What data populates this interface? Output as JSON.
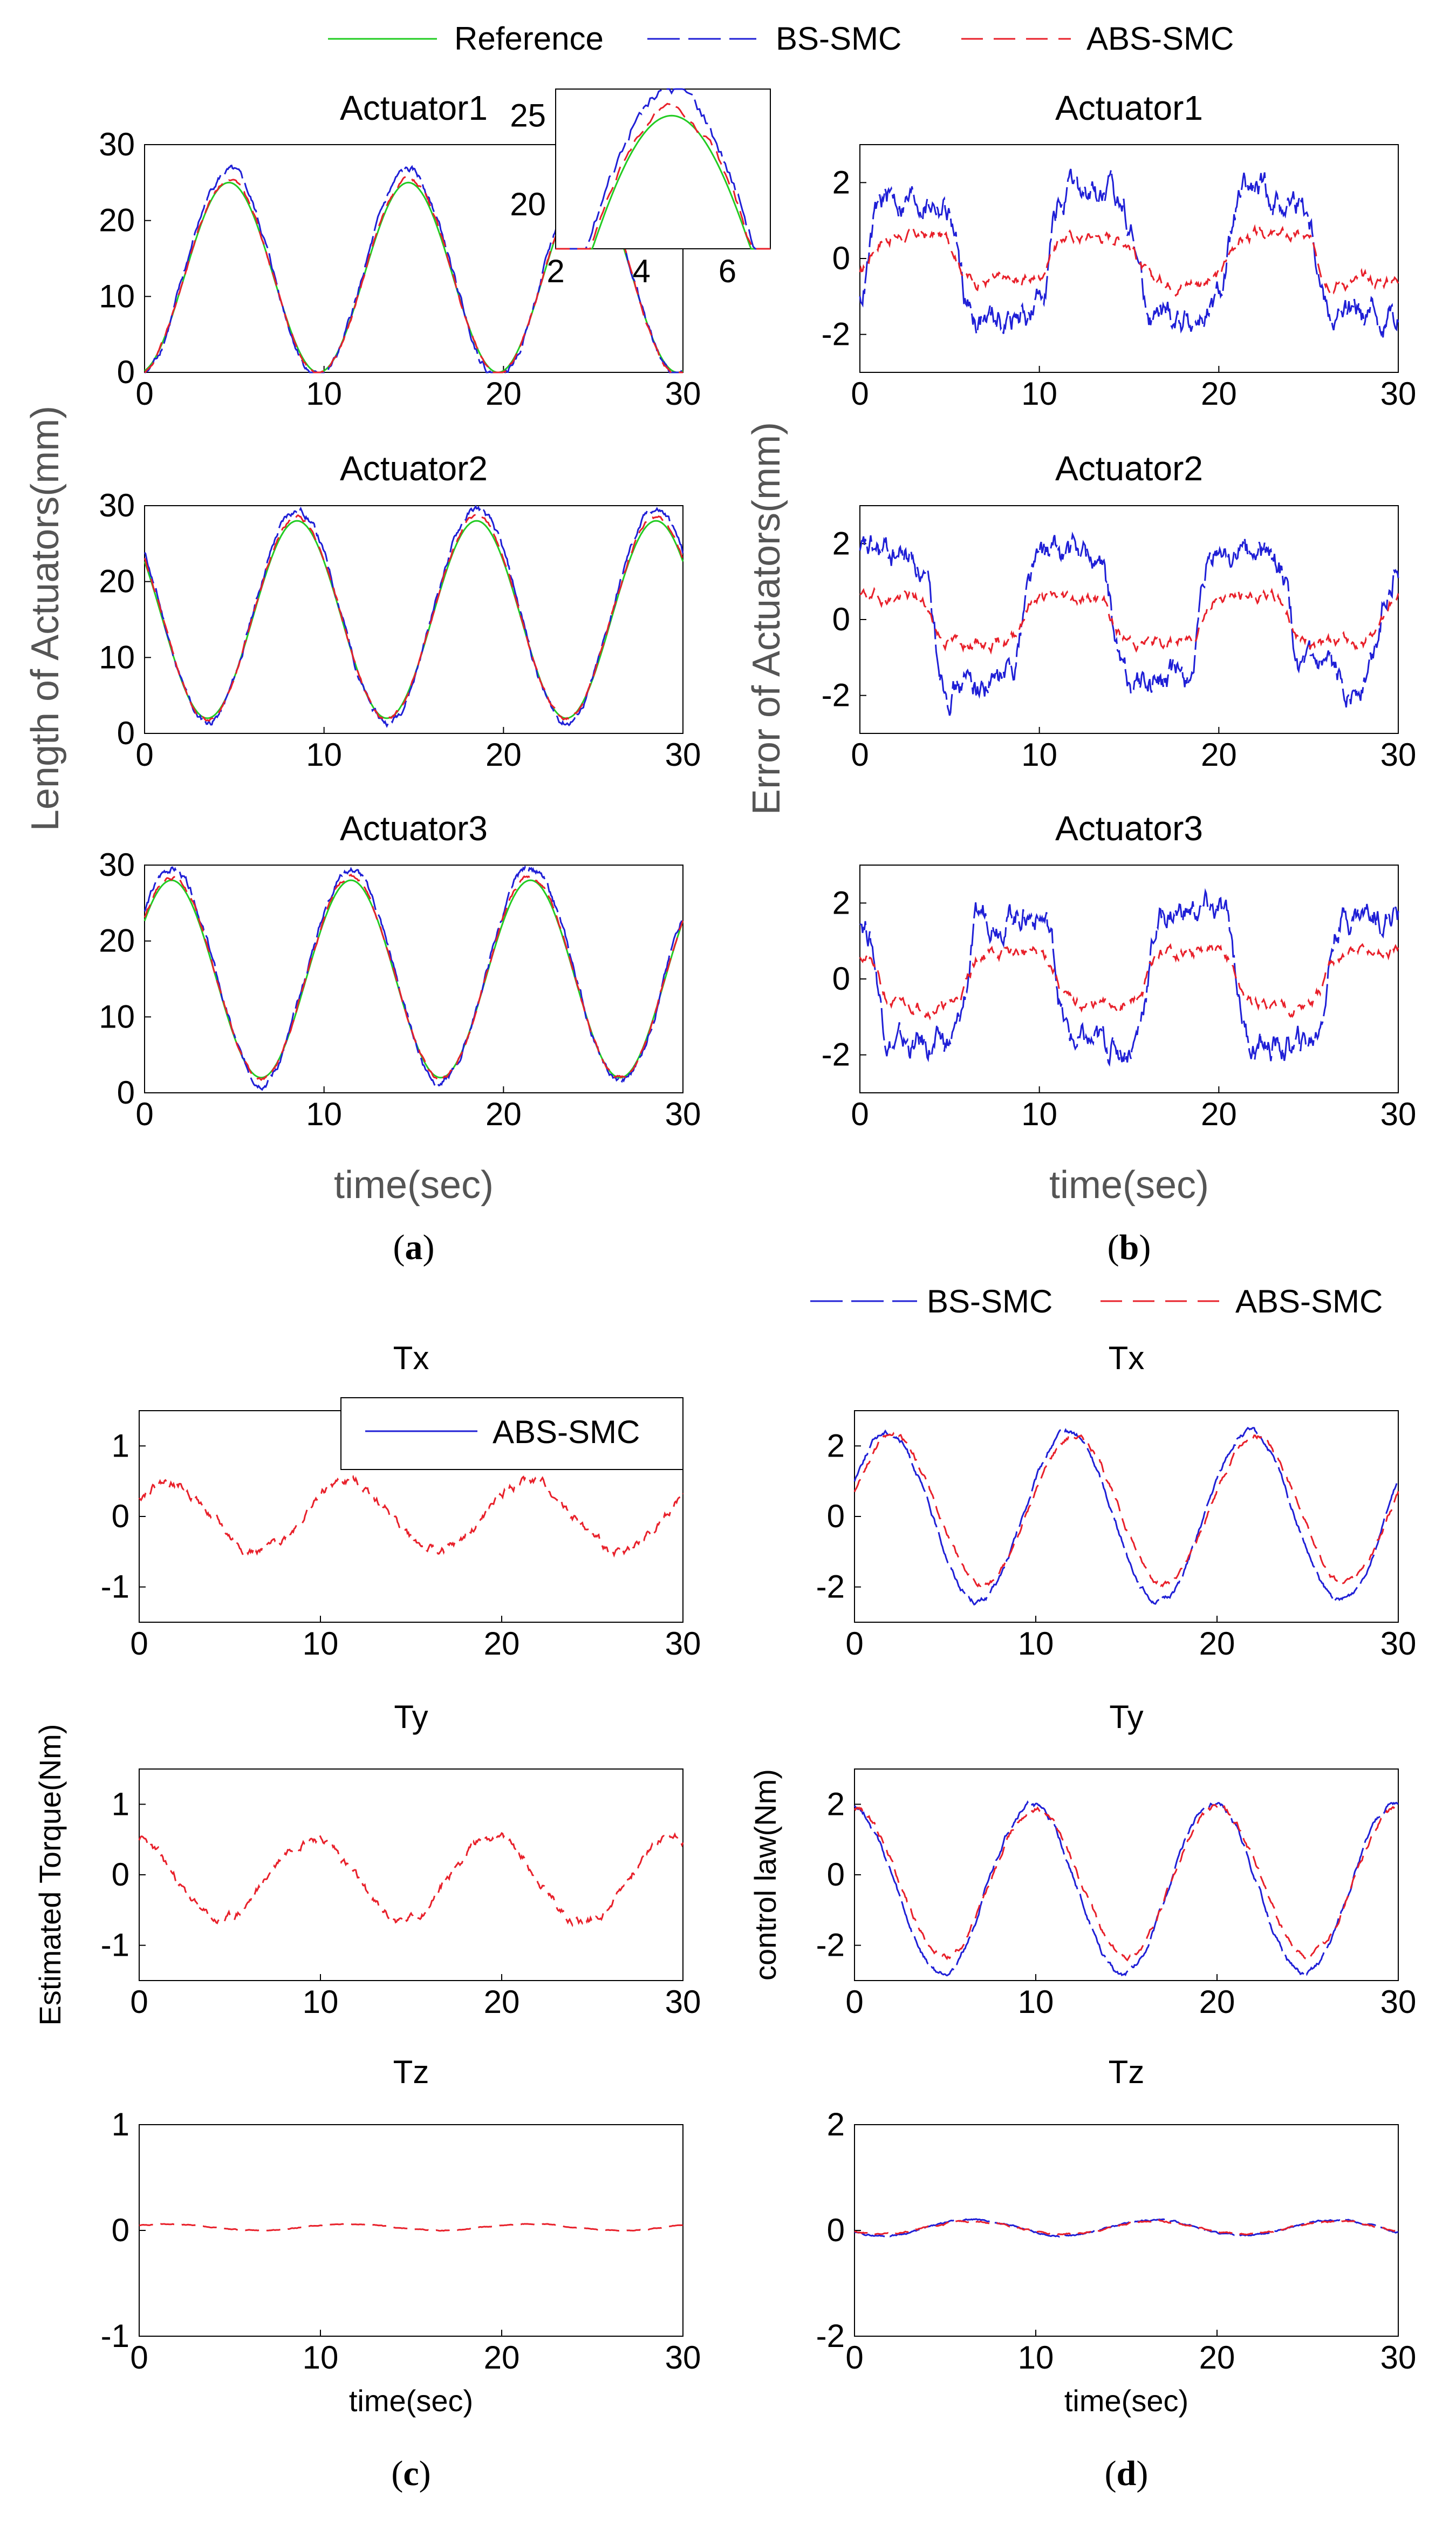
{
  "colors": {
    "reference": "#22cc22",
    "bs": "#1f1fd6",
    "abs": "#e8202a"
  },
  "legend_top": [
    "Reference",
    "BS-SMC",
    "ABS-SMC"
  ],
  "legend_d": [
    "BS-SMC",
    "ABS-SMC"
  ],
  "legend_c": "ABS-SMC",
  "panel_labels": {
    "a": "a",
    "b": "b",
    "c": "c",
    "d": "d"
  },
  "axis_labels": {
    "a_y": "Length of Actuators(mm)",
    "b_y": "Error of Actuators(mm)",
    "c_y": "Estimated Torque(Nm)",
    "d_y": "control law(Nm)",
    "ab_x": "time(sec)",
    "cd_x": "time(sec)"
  },
  "chart_data": [
    {
      "id": "a1",
      "type": "line",
      "title": "Actuator1",
      "xlim": [
        0,
        30
      ],
      "ylim": [
        0,
        30
      ],
      "xticks": [
        0,
        10,
        20,
        30
      ],
      "yticks": [
        0,
        10,
        20,
        30
      ],
      "series": [
        {
          "name": "Reference",
          "ref": true,
          "mean": 12.5,
          "amp": 12.5,
          "phase": 4.7
        },
        {
          "name": "BS-SMC",
          "mean": 13.0,
          "amp": 13.5,
          "phase": 4.7,
          "noise": 0.6
        },
        {
          "name": "ABS-SMC",
          "mean": 12.6,
          "amp": 12.8,
          "phase": 4.7,
          "noise": 0.3
        }
      ]
    },
    {
      "id": "a2",
      "type": "line",
      "title": "Actuator2",
      "xlim": [
        0,
        30
      ],
      "ylim": [
        0,
        30
      ],
      "xticks": [
        0,
        10,
        20,
        30
      ],
      "yticks": [
        0,
        10,
        20,
        30
      ],
      "series": [
        {
          "name": "Reference",
          "ref": true,
          "mean": 15.0,
          "amp": 13.0,
          "phase": 8.5
        },
        {
          "name": "BS-SMC",
          "mean": 15.5,
          "amp": 14.0,
          "phase": 8.5,
          "noise": 0.6
        },
        {
          "name": "ABS-SMC",
          "mean": 15.2,
          "amp": 13.3,
          "phase": 8.5,
          "noise": 0.3
        }
      ]
    },
    {
      "id": "a3",
      "type": "line",
      "title": "Actuator3",
      "xlim": [
        0,
        30
      ],
      "ylim": [
        0,
        30
      ],
      "xticks": [
        0,
        10,
        20,
        30
      ],
      "yticks": [
        0,
        10,
        20,
        30
      ],
      "series": [
        {
          "name": "Reference",
          "ref": true,
          "mean": 15.0,
          "amp": 13.0,
          "phase": 1.5
        },
        {
          "name": "BS-SMC",
          "mean": 15.5,
          "amp": 14.0,
          "phase": 1.5,
          "noise": 0.6
        },
        {
          "name": "ABS-SMC",
          "mean": 15.2,
          "amp": 13.3,
          "phase": 1.5,
          "noise": 0.3
        }
      ]
    },
    {
      "id": "b1",
      "type": "line",
      "title": "Actuator1",
      "xlim": [
        0,
        30
      ],
      "ylim": [
        -3,
        3
      ],
      "xticks": [
        0,
        10,
        20,
        30
      ],
      "yticks": [
        -2,
        0,
        2
      ],
      "series": [
        {
          "name": "BS-SMC",
          "square": true,
          "level": 1.6,
          "period": 10,
          "offset": 0.5,
          "noise": 0.5
        },
        {
          "name": "ABS-SMC",
          "square": true,
          "level": 0.6,
          "period": 10,
          "offset": 0.5,
          "noise": 0.2
        }
      ]
    },
    {
      "id": "b2",
      "type": "line",
      "title": "Actuator2",
      "xlim": [
        0,
        30
      ],
      "ylim": [
        -3,
        3
      ],
      "xticks": [
        0,
        10,
        20,
        30
      ],
      "yticks": [
        -2,
        0,
        2
      ],
      "series": [
        {
          "name": "BS-SMC",
          "square": true,
          "level": 1.7,
          "period": 10,
          "offset": -1.0,
          "noise": 0.5
        },
        {
          "name": "ABS-SMC",
          "square": true,
          "level": 0.6,
          "period": 10,
          "offset": -1.0,
          "noise": 0.2
        }
      ]
    },
    {
      "id": "b3",
      "type": "line",
      "title": "Actuator3",
      "xlim": [
        0,
        30
      ],
      "ylim": [
        -3,
        3
      ],
      "xticks": [
        0,
        10,
        20,
        30
      ],
      "yticks": [
        -2,
        0,
        2
      ],
      "series": [
        {
          "name": "BS-SMC",
          "square": true,
          "level": -1.8,
          "period": 10,
          "offset": 1.0,
          "noise": 0.5
        },
        {
          "name": "ABS-SMC",
          "square": true,
          "level": -0.7,
          "period": 10,
          "offset": 1.0,
          "noise": 0.2
        }
      ]
    },
    {
      "id": "c1",
      "type": "line",
      "title": "Tx",
      "xlim": [
        0,
        30
      ],
      "ylim": [
        -1.5,
        1.5
      ],
      "xticks": [
        0,
        10,
        20,
        30
      ],
      "yticks": [
        -1,
        0,
        1
      ],
      "series": [
        {
          "name": "ABS-SMC",
          "mean": 0.0,
          "amp": 0.5,
          "phase": 1.5,
          "noise": 0.08
        }
      ]
    },
    {
      "id": "c2",
      "type": "line",
      "title": "Ty",
      "xlim": [
        0,
        30
      ],
      "ylim": [
        -1.5,
        1.5
      ],
      "xticks": [
        0,
        10,
        20,
        30
      ],
      "yticks": [
        -1,
        0,
        1
      ],
      "series": [
        {
          "name": "ABS-SMC",
          "mean": -0.05,
          "amp": 0.6,
          "phase": 9.5,
          "noise": 0.08
        }
      ]
    },
    {
      "id": "c3",
      "type": "line",
      "title": "Tz",
      "xlim": [
        0,
        30
      ],
      "ylim": [
        -1,
        1
      ],
      "xticks": [
        0,
        10,
        20,
        30
      ],
      "yticks": [
        -1,
        0,
        1
      ],
      "series": [
        {
          "name": "ABS-SMC",
          "mean": 0.03,
          "amp": 0.03,
          "phase": 1.5,
          "noise": 0.005
        }
      ]
    },
    {
      "id": "d1",
      "type": "line",
      "title": "Tx",
      "xlim": [
        0,
        30
      ],
      "ylim": [
        -3,
        3
      ],
      "xticks": [
        0,
        10,
        20,
        30
      ],
      "yticks": [
        -2,
        0,
        2
      ],
      "series": [
        {
          "name": "BS-SMC",
          "mean": 0.0,
          "amp": 2.4,
          "phase": 1.8,
          "noise": 0.1
        },
        {
          "name": "ABS-SMC",
          "mean": 0.2,
          "amp": 2.1,
          "phase": 2.1,
          "noise": 0.1
        }
      ]
    },
    {
      "id": "d2",
      "type": "line",
      "title": "Ty",
      "xlim": [
        0,
        30
      ],
      "ylim": [
        -3,
        3
      ],
      "xticks": [
        0,
        10,
        20,
        30
      ],
      "yticks": [
        -2,
        0,
        2
      ],
      "series": [
        {
          "name": "BS-SMC",
          "mean": -0.4,
          "amp": 2.4,
          "phase": 9.8,
          "noise": 0.1
        },
        {
          "name": "ABS-SMC",
          "mean": -0.2,
          "amp": 2.1,
          "phase": 10.0,
          "noise": 0.1
        }
      ]
    },
    {
      "id": "d3",
      "type": "line",
      "title": "Tz",
      "xlim": [
        0,
        30
      ],
      "ylim": [
        -2,
        2
      ],
      "xticks": [
        0,
        10,
        20,
        30
      ],
      "yticks": [
        -2,
        0,
        2
      ],
      "series": [
        {
          "name": "BS-SMC",
          "mean": 0.05,
          "amp": 0.15,
          "phase": 6.5,
          "noise": 0.02
        },
        {
          "name": "ABS-SMC",
          "mean": 0.05,
          "amp": 0.12,
          "phase": 6.5,
          "noise": 0.02
        }
      ]
    }
  ],
  "inset": {
    "xlim": [
      2,
      7
    ],
    "ylim": [
      17.5,
      26.5
    ],
    "xticks": [
      2,
      4,
      6
    ],
    "yticks": [
      20,
      25
    ]
  }
}
